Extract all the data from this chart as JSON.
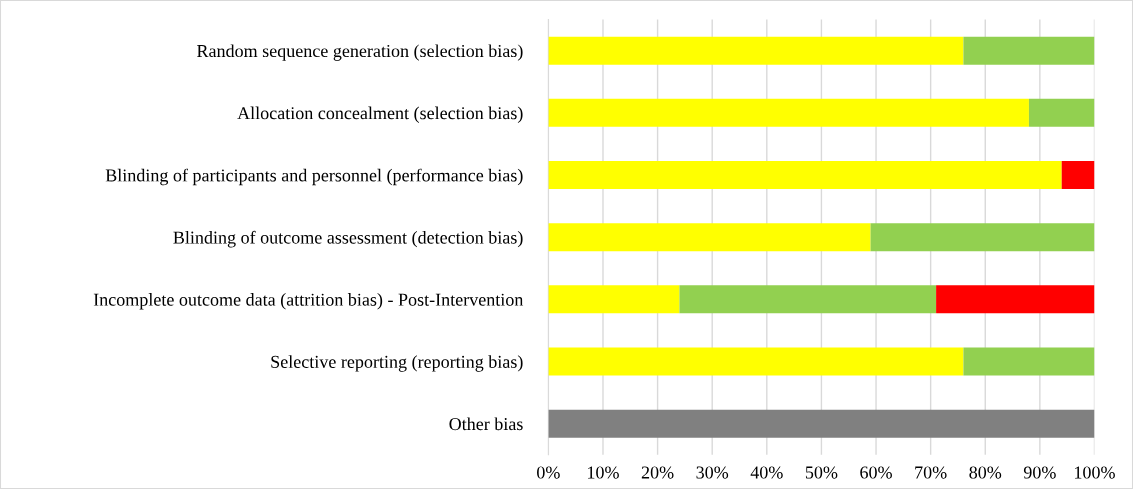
{
  "chart_data": {
    "type": "bar",
    "orientation": "horizontal",
    "stacked": true,
    "categories": [
      "Random sequence generation (selection bias)",
      "Allocation concealment (selection bias)",
      "Blinding of participants and personnel (performance bias)",
      "Blinding of outcome assessment (detection bias)",
      "Incomplete outcome data (attrition bias) - Post-Intervention",
      "Selective reporting (reporting bias)",
      "Other bias"
    ],
    "series": [
      {
        "color": "#ffff00",
        "values": [
          76,
          88,
          94,
          59,
          24,
          76,
          0
        ]
      },
      {
        "color": "#92d050",
        "values": [
          24,
          12,
          0,
          41,
          47,
          24,
          0
        ]
      },
      {
        "color": "#ff0000",
        "values": [
          0,
          0,
          6,
          0,
          29,
          0,
          0
        ]
      },
      {
        "color": "#808080",
        "values": [
          0,
          0,
          0,
          0,
          0,
          0,
          100
        ]
      }
    ],
    "xlim": [
      0,
      100
    ],
    "xticks": [
      {
        "value": 0,
        "label": "0%"
      },
      {
        "value": 10,
        "label": "10%"
      },
      {
        "value": 20,
        "label": "20%"
      },
      {
        "value": 30,
        "label": "30%"
      },
      {
        "value": 40,
        "label": "40%"
      },
      {
        "value": 50,
        "label": "50%"
      },
      {
        "value": 60,
        "label": "60%"
      },
      {
        "value": 70,
        "label": "70%"
      },
      {
        "value": 80,
        "label": "80%"
      },
      {
        "value": 90,
        "label": "90%"
      },
      {
        "value": 100,
        "label": "100%"
      }
    ],
    "grid": "x"
  }
}
